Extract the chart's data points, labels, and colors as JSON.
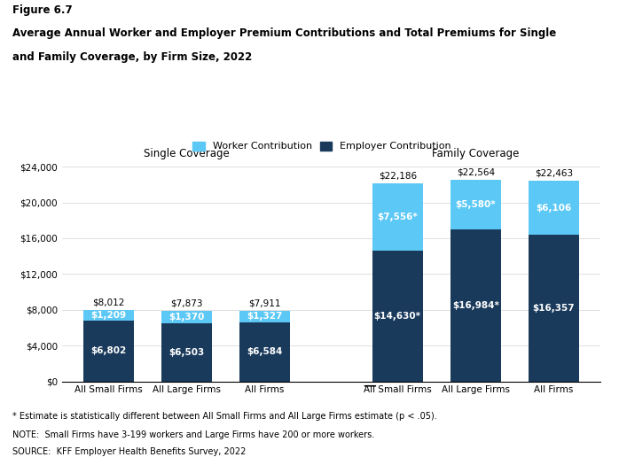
{
  "title_line1": "Figure 6.7",
  "title_line2": "Average Annual Worker and Employer Premium Contributions and Total Premiums for Single",
  "title_line3": "and Family Coverage, by Firm Size, 2022",
  "single_categories": [
    "All Small Firms",
    "All Large Firms",
    "All Firms"
  ],
  "family_categories": [
    "All Small Firms",
    "All Large Firms",
    "All Firms"
  ],
  "single_employer": [
    6802,
    6503,
    6584
  ],
  "single_worker": [
    1209,
    1370,
    1327
  ],
  "single_total": [
    8012,
    7873,
    7911
  ],
  "family_employer": [
    14630,
    16984,
    16357
  ],
  "family_worker": [
    7556,
    5580,
    6106
  ],
  "family_total": [
    22186,
    22564,
    22463
  ],
  "single_employer_labels": [
    "$6,802",
    "$6,503",
    "$6,584"
  ],
  "single_worker_labels": [
    "$1,209",
    "$1,370",
    "$1,327"
  ],
  "single_total_labels": [
    "$8,012",
    "$7,873",
    "$7,911"
  ],
  "family_employer_labels": [
    "$14,630*",
    "$16,984*",
    "$16,357"
  ],
  "family_worker_labels": [
    "$7,556*",
    "$5,580*",
    "$6,106"
  ],
  "family_total_labels": [
    "$22,186",
    "$22,564",
    "$22,463"
  ],
  "color_worker": "#5bc8f5",
  "color_employer": "#1a3a5c",
  "section_label_single": "Single Coverage",
  "section_label_family": "Family Coverage",
  "legend_worker": "Worker Contribution",
  "legend_employer": "Employer Contribution",
  "ylim": [
    0,
    26000
  ],
  "yticks": [
    0,
    4000,
    8000,
    12000,
    16000,
    20000,
    24000
  ],
  "footnote1": "* Estimate is statistically different between All Small Firms and All Large Firms estimate (p < .05).",
  "footnote2": "NOTE:  Small Firms have 3-199 workers and Large Firms have 200 or more workers.",
  "footnote3": "SOURCE:  KFF Employer Health Benefits Survey, 2022",
  "bar_width": 0.65
}
